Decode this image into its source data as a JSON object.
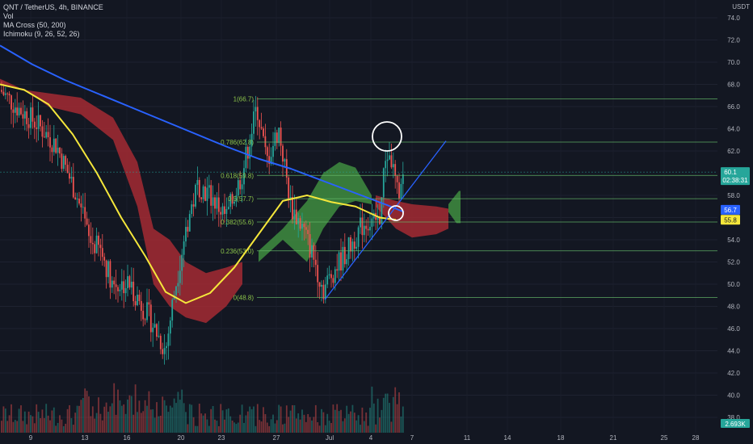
{
  "legend": {
    "symbol": "QNT / TetherUS, 4h, BINANCE",
    "vol": "Vol",
    "ma": "MA Cross (50, 200)",
    "ichimoku": "Ichimoku (9, 26, 52, 26)"
  },
  "price_unit": "USDT",
  "colors": {
    "background": "#131722",
    "up": "#26a69a",
    "down": "#ef5350",
    "ma50": "#f5e73b",
    "ma200": "#2962ff",
    "cloud_bull": "#3f8d3f",
    "cloud_bear": "#a52a33",
    "fib": "#66bb6a",
    "trendline": "#2962ff",
    "circle": "#ffffff"
  },
  "chart_data": {
    "type": "candlestick",
    "ylim": [
      37.5,
      75
    ],
    "y_ticks": [
      "38.0",
      "40.0",
      "42.0",
      "44.0",
      "46.0",
      "48.0",
      "50.0",
      "52.0",
      "54.0",
      "56.0",
      "58.0",
      "62.0",
      "64.0",
      "66.0",
      "68.0",
      "70.0",
      "72.0",
      "74.0"
    ],
    "x_ticks": [
      "9",
      "13",
      "16",
      "20",
      "23",
      "27",
      "Jul",
      "4",
      "7",
      "11",
      "14",
      "18",
      "21",
      "25",
      "28"
    ],
    "fib_levels": [
      {
        "label": "1(66.7)",
        "value": 66.7
      },
      {
        "label": "0.786(62.8)",
        "value": 62.8
      },
      {
        "label": "0.618(59.8)",
        "value": 59.8
      },
      {
        "label": "0.5(57.7)",
        "value": 57.7
      },
      {
        "label": "0.382(55.6)",
        "value": 55.6
      },
      {
        "label": "0.236(53.0)",
        "value": 53.0
      },
      {
        "label": "0(48.8)",
        "value": 48.8
      }
    ],
    "price_badges": [
      {
        "value": "60.1",
        "sub": "02:38:31",
        "price": 60.1,
        "kind": "last"
      },
      {
        "value": "56.7",
        "price": 56.7,
        "kind": "ma200"
      },
      {
        "value": "55.8",
        "price": 55.8,
        "kind": "ma50"
      }
    ],
    "volume_badge": "2.693K",
    "ma200": [
      [
        0,
        71.5
      ],
      [
        40,
        69.8
      ],
      [
        80,
        68.4
      ],
      [
        120,
        67.2
      ],
      [
        160,
        66.0
      ],
      [
        200,
        64.8
      ],
      [
        240,
        63.6
      ],
      [
        280,
        62.4
      ],
      [
        320,
        61.3
      ],
      [
        360,
        60.4
      ],
      [
        400,
        59.3
      ],
      [
        440,
        58.2
      ],
      [
        480,
        57.1
      ],
      [
        500,
        56.5
      ]
    ],
    "ma50": [
      [
        0,
        68
      ],
      [
        30,
        67.5
      ],
      [
        60,
        66.2
      ],
      [
        90,
        63.5
      ],
      [
        120,
        60
      ],
      [
        150,
        56
      ],
      [
        180,
        52.5
      ],
      [
        205,
        49.3
      ],
      [
        230,
        48.3
      ],
      [
        260,
        49.2
      ],
      [
        290,
        51.5
      ],
      [
        320,
        54.5
      ],
      [
        350,
        57.5
      ],
      [
        380,
        58
      ],
      [
        410,
        57.4
      ],
      [
        440,
        57
      ],
      [
        470,
        56
      ],
      [
        490,
        55.8
      ]
    ],
    "cloud": [
      {
        "kind": "bear",
        "top": [
          [
            0,
            68.5
          ],
          [
            30,
            67.5
          ],
          [
            60,
            67.2
          ],
          [
            100,
            66.8
          ],
          [
            140,
            65
          ],
          [
            170,
            61
          ],
          [
            190,
            55
          ],
          [
            210,
            54
          ],
          [
            230,
            52
          ],
          [
            255,
            51
          ],
          [
            280,
            51.5
          ],
          [
            300,
            52
          ]
        ],
        "bottom": [
          [
            0,
            68
          ],
          [
            30,
            67.6
          ],
          [
            60,
            66
          ],
          [
            100,
            65.3
          ],
          [
            140,
            63
          ],
          [
            170,
            57
          ],
          [
            190,
            50
          ],
          [
            210,
            48
          ],
          [
            230,
            47
          ],
          [
            255,
            46.5
          ],
          [
            280,
            48
          ],
          [
            300,
            50
          ]
        ]
      },
      {
        "kind": "bull",
        "top": [
          [
            320,
            53
          ],
          [
            350,
            55
          ],
          [
            380,
            57.5
          ],
          [
            400,
            60
          ],
          [
            420,
            61
          ],
          [
            440,
            60.5
          ],
          [
            460,
            58
          ]
        ],
        "bottom": [
          [
            320,
            52
          ],
          [
            350,
            54
          ],
          [
            380,
            52
          ],
          [
            400,
            55
          ],
          [
            420,
            57
          ],
          [
            440,
            57.5
          ],
          [
            460,
            57.2
          ]
        ]
      },
      {
        "kind": "bear",
        "top": [
          [
            465,
            58
          ],
          [
            490,
            57.5
          ],
          [
            510,
            57.2
          ],
          [
            540,
            57
          ],
          [
            555,
            56.8
          ]
        ],
        "bottom": [
          [
            465,
            57
          ],
          [
            490,
            55
          ],
          [
            510,
            54.2
          ],
          [
            540,
            54.5
          ],
          [
            555,
            55
          ]
        ]
      },
      {
        "kind": "bull",
        "top": [
          [
            555,
            57.2
          ],
          [
            568,
            58.4
          ],
          [
            570,
            58.4
          ]
        ],
        "bottom": [
          [
            555,
            56.5
          ],
          [
            565,
            55.5
          ],
          [
            570,
            55.5
          ]
        ]
      }
    ],
    "trendline": [
      [
        402,
        48.6
      ],
      [
        552,
        62.9
      ]
    ]
  }
}
